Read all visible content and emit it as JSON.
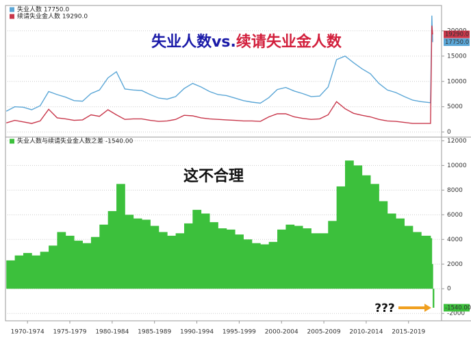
{
  "chart_data": [
    {
      "type": "line",
      "title": [
        "失业人数vs.",
        "续请失业金人数"
      ],
      "title_colors": [
        "#1a1aa8",
        "#d21f3c"
      ],
      "x": [
        1970,
        1971,
        1972,
        1973,
        1974,
        1975,
        1976,
        1977,
        1978,
        1979,
        1980,
        1981,
        1982,
        1983,
        1984,
        1985,
        1986,
        1987,
        1988,
        1989,
        1990,
        1991,
        1992,
        1993,
        1994,
        1995,
        1996,
        1997,
        1998,
        1999,
        2000,
        2001,
        2002,
        2003,
        2004,
        2005,
        2006,
        2007,
        2008,
        2009,
        2010,
        2011,
        2012,
        2013,
        2014,
        2015,
        2016,
        2017,
        2018,
        2019,
        2020.1,
        2020.25,
        2020.35
      ],
      "xlim": [
        1969.9,
        2021.4
      ],
      "ylim": [
        -1000,
        25000
      ],
      "yticks": [
        0,
        5000,
        10000,
        15000,
        20000
      ],
      "grid": true,
      "series": [
        {
          "name": "失业人数 17750.0",
          "color": "#5aa6d6",
          "last_value_label": "17750.0",
          "values": [
            4100,
            5000,
            4900,
            4400,
            5200,
            8000,
            7400,
            6900,
            6200,
            6100,
            7600,
            8300,
            10700,
            11900,
            8500,
            8300,
            8200,
            7400,
            6700,
            6500,
            7000,
            8600,
            9600,
            8900,
            8000,
            7400,
            7200,
            6700,
            6200,
            5900,
            5700,
            6800,
            8400,
            8800,
            8100,
            7600,
            7000,
            7100,
            8900,
            14300,
            15000,
            13700,
            12500,
            11500,
            9600,
            8300,
            7800,
            7000,
            6300,
            6000,
            5800,
            23000,
            17750
          ]
        },
        {
          "name": "续请失业金人数 19290.0",
          "color": "#c8364a",
          "last_value_label": "19290.0",
          "values": [
            1800,
            2300,
            2000,
            1700,
            2200,
            4500,
            2800,
            2600,
            2300,
            2400,
            3400,
            3100,
            4400,
            3400,
            2500,
            2600,
            2600,
            2300,
            2100,
            2200,
            2500,
            3300,
            3200,
            2800,
            2600,
            2500,
            2400,
            2300,
            2200,
            2200,
            2100,
            3000,
            3600,
            3600,
            3000,
            2700,
            2500,
            2600,
            3400,
            6000,
            4600,
            3700,
            3300,
            3000,
            2500,
            2200,
            2100,
            1900,
            1700,
            1700,
            1700,
            21000,
            19290
          ]
        }
      ]
    },
    {
      "type": "area",
      "annotations": [
        "这不合理",
        "???"
      ],
      "x": [
        1970,
        1971,
        1972,
        1973,
        1974,
        1975,
        1976,
        1977,
        1978,
        1979,
        1980,
        1981,
        1982,
        1983,
        1984,
        1985,
        1986,
        1987,
        1988,
        1989,
        1990,
        1991,
        1992,
        1993,
        1994,
        1995,
        1996,
        1997,
        1998,
        1999,
        2000,
        2001,
        2002,
        2003,
        2004,
        2005,
        2006,
        2007,
        2008,
        2009,
        2010,
        2011,
        2012,
        2013,
        2014,
        2015,
        2016,
        2017,
        2018,
        2019,
        2020.1,
        2020.25,
        2020.35
      ],
      "xlim": [
        1969.9,
        2021.4
      ],
      "ylim": [
        -2600,
        12300
      ],
      "yticks": [
        -2000,
        0,
        2000,
        4000,
        6000,
        8000,
        10000,
        12000
      ],
      "grid": true,
      "xticks": [
        {
          "value": 1972.5,
          "label": "1970-1974"
        },
        {
          "value": 1977.5,
          "label": "1975-1979"
        },
        {
          "value": 1982.5,
          "label": "1980-1984"
        },
        {
          "value": 1987.5,
          "label": "1985-1989"
        },
        {
          "value": 1992.5,
          "label": "1990-1994"
        },
        {
          "value": 1997.5,
          "label": "1995-1999"
        },
        {
          "value": 2002.5,
          "label": "2000-2004"
        },
        {
          "value": 2007.5,
          "label": "2005-2009"
        },
        {
          "value": 2012.5,
          "label": "2010-2014"
        },
        {
          "value": 2017.5,
          "label": "2015-2019"
        }
      ],
      "series": [
        {
          "name": "失业人数与续请失业金人数之差  -1540.00",
          "color": "#3cc03c",
          "last_value_label": "-1540.00",
          "values": [
            2300,
            2700,
            2900,
            2700,
            3000,
            3500,
            4600,
            4300,
            3900,
            3700,
            4200,
            5200,
            6300,
            8500,
            6000,
            5700,
            5600,
            5100,
            4600,
            4300,
            4500,
            5300,
            6400,
            6100,
            5400,
            4900,
            4800,
            4400,
            4000,
            3700,
            3600,
            3800,
            4800,
            5200,
            5100,
            4900,
            4500,
            4500,
            5500,
            8300,
            10400,
            10000,
            9200,
            8500,
            7100,
            6100,
            5700,
            5100,
            4600,
            4300,
            4100,
            2000,
            -1540
          ]
        }
      ]
    }
  ]
}
